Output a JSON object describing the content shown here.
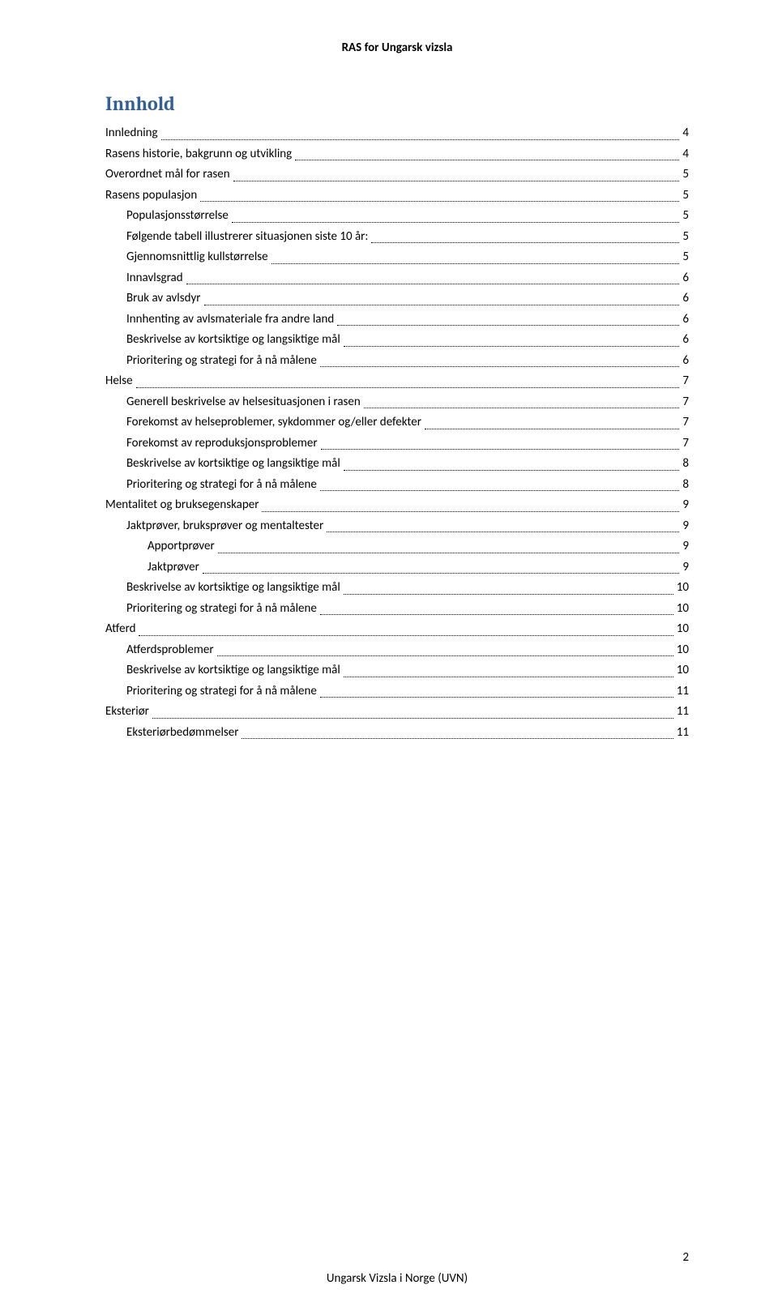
{
  "header": "RAS for Ungarsk vizsla",
  "toc_title": "Innhold",
  "footer": "Ungarsk Vizsla i Norge (UVN)",
  "page_number": "2",
  "toc": [
    {
      "level": 1,
      "label": "Innledning",
      "page": "4"
    },
    {
      "level": 1,
      "label": "Rasens historie, bakgrunn og utvikling",
      "page": "4"
    },
    {
      "level": 1,
      "label": "Overordnet mål for rasen",
      "page": "5"
    },
    {
      "level": 1,
      "label": "Rasens populasjon",
      "page": "5"
    },
    {
      "level": 2,
      "label": "Populasjonsstørrelse",
      "page": "5"
    },
    {
      "level": 2,
      "label": "Følgende tabell illustrerer situasjonen siste 10 år:",
      "page": "5"
    },
    {
      "level": 2,
      "label": "Gjennomsnittlig kullstørrelse",
      "page": "5"
    },
    {
      "level": 2,
      "label": "Innavlsgrad",
      "page": "6"
    },
    {
      "level": 2,
      "label": "Bruk av avlsdyr",
      "page": "6"
    },
    {
      "level": 2,
      "label": "Innhenting av avlsmateriale fra andre land",
      "page": "6"
    },
    {
      "level": 2,
      "label": "Beskrivelse av kortsiktige og langsiktige mål",
      "page": "6"
    },
    {
      "level": 2,
      "label": "Prioritering og strategi for å nå målene",
      "page": "6"
    },
    {
      "level": 1,
      "label": "Helse",
      "page": "7"
    },
    {
      "level": 2,
      "label": "Generell beskrivelse av helsesituasjonen i rasen",
      "page": "7"
    },
    {
      "level": 2,
      "label": "Forekomst av helseproblemer, sykdommer og/eller defekter",
      "page": "7"
    },
    {
      "level": 2,
      "label": "Forekomst av reproduksjonsproblemer",
      "page": "7"
    },
    {
      "level": 2,
      "label": "Beskrivelse av kortsiktige og langsiktige mål",
      "page": "8"
    },
    {
      "level": 2,
      "label": "Prioritering og strategi for å nå målene",
      "page": "8"
    },
    {
      "level": 1,
      "label": "Mentalitet og bruksegenskaper",
      "page": "9"
    },
    {
      "level": 2,
      "label": "Jaktprøver, bruksprøver og mentaltester",
      "page": "9"
    },
    {
      "level": 3,
      "label": "Apportprøver",
      "page": "9"
    },
    {
      "level": 3,
      "label": "Jaktprøver",
      "page": "9"
    },
    {
      "level": 2,
      "label": "Beskrivelse av kortsiktige og langsiktige mål",
      "page": "10"
    },
    {
      "level": 2,
      "label": "Prioritering og strategi for å nå målene",
      "page": "10"
    },
    {
      "level": 1,
      "label": "Atferd",
      "page": "10"
    },
    {
      "level": 2,
      "label": "Atferdsproblemer",
      "page": "10"
    },
    {
      "level": 2,
      "label": "Beskrivelse av kortsiktige og langsiktige mål",
      "page": "10"
    },
    {
      "level": 2,
      "label": "Prioritering og strategi for å nå målene",
      "page": "11"
    },
    {
      "level": 1,
      "label": "Eksteriør",
      "page": "11"
    },
    {
      "level": 2,
      "label": "Eksteriørbedømmelser",
      "page": "11"
    }
  ]
}
